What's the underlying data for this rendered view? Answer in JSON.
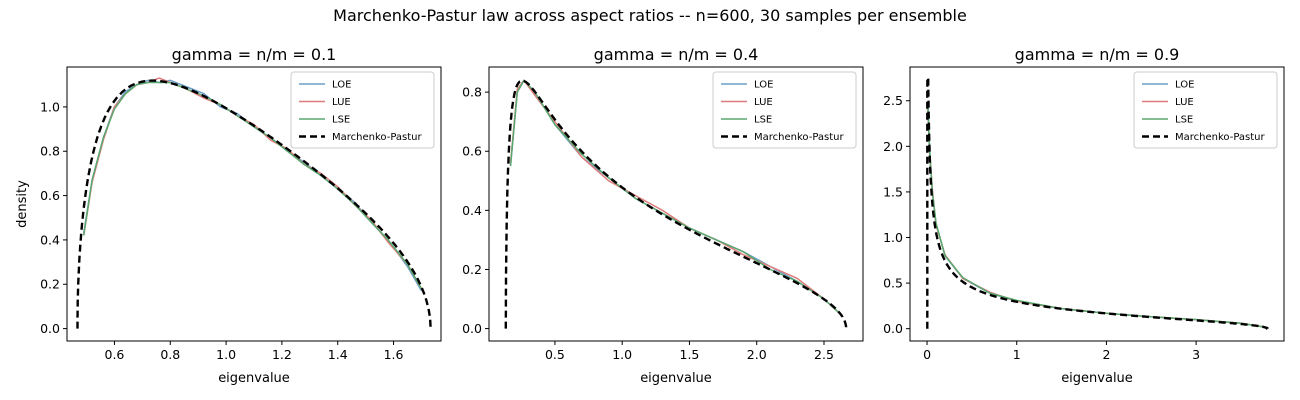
{
  "figure": {
    "suptitle": "Marchenko-Pastur law across aspect ratios -- n=600, 30 samples per ensemble"
  },
  "chart_data": [
    {
      "type": "line",
      "title": "gamma = n/m = 0.1",
      "xlabel": "eigenvalue",
      "ylabel": "density",
      "xlim": [
        0.43,
        1.77
      ],
      "ylim": [
        -0.056,
        1.18
      ],
      "xticks": [
        0.6,
        0.8,
        1.0,
        1.2,
        1.4,
        1.6
      ],
      "xtick_labels": [
        "0.6",
        "0.8",
        "1.0",
        "1.2",
        "1.4",
        "1.6"
      ],
      "yticks": [
        0.0,
        0.2,
        0.4,
        0.6,
        0.8,
        1.0
      ],
      "ytick_labels": [
        "0.0",
        "0.2",
        "0.4",
        "0.6",
        "0.8",
        "1.0"
      ],
      "legend": {
        "loc": "upper right",
        "entries": [
          "LOE",
          "LUE",
          "LSE",
          "Marchenko-Pastur"
        ]
      },
      "mp": {
        "gamma": 0.1,
        "lambda_minus": 0.4675,
        "lambda_plus": 1.7325
      },
      "series": [
        {
          "name": "LOE",
          "color": "#6d9fc9",
          "style": "solid",
          "x": [
            0.49,
            0.52,
            0.56,
            0.6,
            0.64,
            0.68,
            0.72,
            0.76,
            0.8,
            0.86,
            0.92,
            0.98,
            1.04,
            1.1,
            1.16,
            1.22,
            1.28,
            1.34,
            1.4,
            1.46,
            1.52,
            1.58,
            1.65,
            1.7
          ],
          "y": [
            0.43,
            0.67,
            0.86,
            1.0,
            1.07,
            1.1,
            1.12,
            1.11,
            1.12,
            1.09,
            1.06,
            1.0,
            0.97,
            0.91,
            0.86,
            0.8,
            0.75,
            0.69,
            0.63,
            0.57,
            0.48,
            0.4,
            0.28,
            0.17
          ]
        },
        {
          "name": "LUE",
          "color": "#e07b7b",
          "style": "solid",
          "x": [
            0.49,
            0.52,
            0.56,
            0.6,
            0.64,
            0.68,
            0.72,
            0.76,
            0.8,
            0.86,
            0.92,
            0.98,
            1.04,
            1.1,
            1.16,
            1.22,
            1.28,
            1.34,
            1.4,
            1.46,
            1.52,
            1.58,
            1.65,
            1.7
          ],
          "y": [
            0.42,
            0.66,
            0.85,
            1.0,
            1.06,
            1.1,
            1.11,
            1.13,
            1.11,
            1.08,
            1.04,
            1.01,
            0.96,
            0.92,
            0.85,
            0.81,
            0.74,
            0.7,
            0.64,
            0.56,
            0.49,
            0.39,
            0.29,
            0.18
          ]
        },
        {
          "name": "LSE",
          "color": "#5aa86e",
          "style": "solid",
          "x": [
            0.49,
            0.52,
            0.56,
            0.6,
            0.64,
            0.68,
            0.72,
            0.76,
            0.8,
            0.86,
            0.92,
            0.98,
            1.04,
            1.1,
            1.16,
            1.22,
            1.28,
            1.34,
            1.4,
            1.46,
            1.52,
            1.58,
            1.65,
            1.7
          ],
          "y": [
            0.42,
            0.67,
            0.86,
            0.99,
            1.06,
            1.1,
            1.11,
            1.11,
            1.11,
            1.08,
            1.05,
            1.01,
            0.96,
            0.91,
            0.86,
            0.8,
            0.74,
            0.69,
            0.63,
            0.56,
            0.48,
            0.4,
            0.29,
            0.18
          ]
        }
      ]
    },
    {
      "type": "line",
      "title": "gamma = n/m = 0.4",
      "xlabel": "eigenvalue",
      "ylabel": "",
      "xlim": [
        0.01,
        2.79
      ],
      "ylim": [
        -0.042,
        0.885
      ],
      "xticks": [
        0.5,
        1.0,
        1.5,
        2.0,
        2.5
      ],
      "xtick_labels": [
        "0.5",
        "1.0",
        "1.5",
        "2.0",
        "2.5"
      ],
      "yticks": [
        0.0,
        0.2,
        0.4,
        0.6,
        0.8
      ],
      "ytick_labels": [
        "0.0",
        "0.2",
        "0.4",
        "0.6",
        "0.8"
      ],
      "legend": {
        "loc": "upper right",
        "entries": [
          "LOE",
          "LUE",
          "LSE",
          "Marchenko-Pastur"
        ]
      },
      "mp": {
        "gamma": 0.4,
        "lambda_minus": 0.1351,
        "lambda_plus": 2.6649
      },
      "series": [
        {
          "name": "LOE",
          "color": "#6d9fc9",
          "style": "solid",
          "x": [
            0.17,
            0.22,
            0.27,
            0.35,
            0.5,
            0.7,
            0.9,
            1.1,
            1.3,
            1.5,
            1.7,
            1.9,
            2.1,
            2.3,
            2.5,
            2.62
          ],
          "y": [
            0.55,
            0.8,
            0.84,
            0.8,
            0.69,
            0.58,
            0.51,
            0.44,
            0.39,
            0.34,
            0.3,
            0.26,
            0.21,
            0.16,
            0.1,
            0.05
          ]
        },
        {
          "name": "LUE",
          "color": "#e07b7b",
          "style": "solid",
          "x": [
            0.17,
            0.22,
            0.27,
            0.35,
            0.5,
            0.7,
            0.9,
            1.1,
            1.3,
            1.5,
            1.7,
            1.9,
            2.1,
            2.3,
            2.5,
            2.62
          ],
          "y": [
            0.56,
            0.81,
            0.84,
            0.79,
            0.7,
            0.58,
            0.5,
            0.45,
            0.4,
            0.34,
            0.3,
            0.25,
            0.21,
            0.17,
            0.1,
            0.05
          ]
        },
        {
          "name": "LSE",
          "color": "#5aa86e",
          "style": "solid",
          "x": [
            0.17,
            0.22,
            0.27,
            0.35,
            0.5,
            0.7,
            0.9,
            1.1,
            1.3,
            1.5,
            1.7,
            1.9,
            2.1,
            2.3,
            2.5,
            2.62
          ],
          "y": [
            0.55,
            0.8,
            0.84,
            0.8,
            0.69,
            0.59,
            0.51,
            0.44,
            0.39,
            0.34,
            0.3,
            0.26,
            0.2,
            0.16,
            0.1,
            0.05
          ]
        }
      ]
    },
    {
      "type": "line",
      "title": "gamma = n/m = 0.9",
      "xlabel": "eigenvalue",
      "ylabel": "",
      "xlim": [
        -0.19,
        3.98
      ],
      "ylim": [
        -0.135,
        2.87
      ],
      "xticks": [
        0,
        1,
        2,
        3
      ],
      "xtick_labels": [
        "0",
        "1",
        "2",
        "3"
      ],
      "yticks": [
        0.0,
        0.5,
        1.0,
        1.5,
        2.0,
        2.5
      ],
      "ytick_labels": [
        "0.0",
        "0.5",
        "1.0",
        "1.5",
        "2.0",
        "2.5"
      ],
      "legend": {
        "loc": "upper right",
        "entries": [
          "LOE",
          "LUE",
          "LSE",
          "Marchenko-Pastur"
        ]
      },
      "mp": {
        "gamma": 0.9,
        "lambda_minus": 0.0026,
        "lambda_plus": 3.7947
      },
      "series": [
        {
          "name": "LOE",
          "color": "#6d9fc9",
          "style": "solid",
          "x": [
            0.01,
            0.03,
            0.06,
            0.1,
            0.2,
            0.4,
            0.7,
            1.0,
            1.5,
            2.0,
            2.5,
            3.0,
            3.5,
            3.75
          ],
          "y": [
            2.45,
            1.95,
            1.5,
            1.15,
            0.8,
            0.55,
            0.39,
            0.3,
            0.22,
            0.17,
            0.13,
            0.1,
            0.06,
            0.02
          ]
        },
        {
          "name": "LUE",
          "color": "#e07b7b",
          "style": "solid",
          "x": [
            0.01,
            0.03,
            0.06,
            0.1,
            0.2,
            0.4,
            0.7,
            1.0,
            1.5,
            2.0,
            2.5,
            3.0,
            3.5,
            3.75
          ],
          "y": [
            2.4,
            1.92,
            1.52,
            1.14,
            0.81,
            0.55,
            0.4,
            0.3,
            0.22,
            0.17,
            0.13,
            0.1,
            0.06,
            0.02
          ]
        },
        {
          "name": "LSE",
          "color": "#5aa86e",
          "style": "solid",
          "x": [
            0.01,
            0.03,
            0.06,
            0.1,
            0.2,
            0.4,
            0.7,
            1.0,
            1.5,
            2.0,
            2.5,
            3.0,
            3.5,
            3.75
          ],
          "y": [
            2.42,
            1.94,
            1.49,
            1.16,
            0.8,
            0.56,
            0.39,
            0.31,
            0.22,
            0.17,
            0.13,
            0.1,
            0.06,
            0.02
          ]
        }
      ]
    }
  ],
  "mp_style": {
    "name": "Marchenko-Pastur",
    "color": "#000000",
    "style": "dashed"
  }
}
